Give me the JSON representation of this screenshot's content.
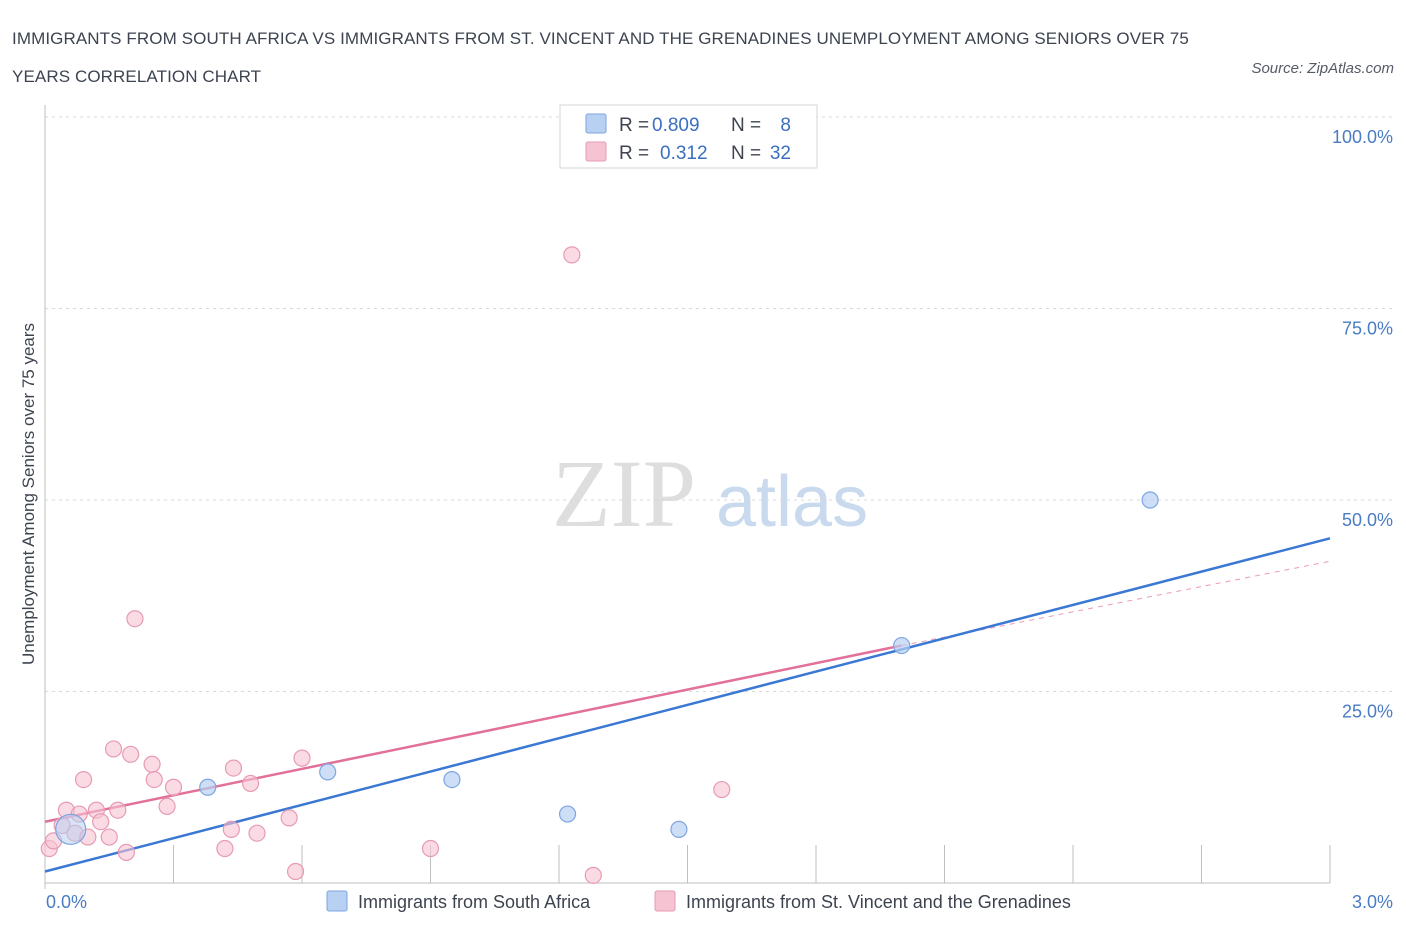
{
  "header": {
    "title": "IMMIGRANTS FROM SOUTH AFRICA VS IMMIGRANTS FROM ST. VINCENT AND THE GRENADINES UNEMPLOYMENT AMONG SENIORS OVER 75 YEARS CORRELATION CHART",
    "source": "Source: ZipAtlas.com"
  },
  "watermark": {
    "zip": "ZIP",
    "atlas": "atlas"
  },
  "colors": {
    "blue": "#3a78d4",
    "blue_fill": "#b8d0f2",
    "pink": "#e2709a",
    "pink_fill": "#f6c3d2",
    "axis_text": "#4a7cc4",
    "grid": "#d8d8d8"
  },
  "legend": {
    "r_label": "R =",
    "n_label": "N =",
    "entries": [
      {
        "r": "0.809",
        "n": "8"
      },
      {
        "r": "0.312",
        "n": "32"
      }
    ]
  },
  "chart_data": {
    "type": "scatter",
    "title": "IMMIGRANTS FROM SOUTH AFRICA VS IMMIGRANTS FROM ST. VINCENT AND THE GRENADINES UNEMPLOYMENT AMONG SENIORS OVER 75 YEARS CORRELATION CHART",
    "xlabel": "",
    "ylabel": "Unemployment Among Seniors over 75 years",
    "xlim": [
      0,
      3
    ],
    "ylim": [
      0,
      100
    ],
    "x_tick_labels": [
      "0.0%",
      "3.0%"
    ],
    "y_ticks": [
      25,
      50,
      75,
      100
    ],
    "y_tick_labels": [
      "25.0%",
      "50.0%",
      "75.0%",
      "100.0%"
    ],
    "grid": true,
    "legend_position": "top-center",
    "series": [
      {
        "name": "Immigrants from South Africa",
        "color": "#3a78d4",
        "r": 0.809,
        "n": 8,
        "points": [
          {
            "x": 0.06,
            "y": 7.0,
            "big": true
          },
          {
            "x": 0.38,
            "y": 12.5
          },
          {
            "x": 0.66,
            "y": 14.5
          },
          {
            "x": 0.95,
            "y": 13.5
          },
          {
            "x": 1.22,
            "y": 9.0
          },
          {
            "x": 1.48,
            "y": 7.0
          },
          {
            "x": 2.0,
            "y": 31.0
          },
          {
            "x": 2.58,
            "y": 50.0
          }
        ],
        "trend": {
          "x": [
            0.0,
            3.0
          ],
          "y": [
            1.5,
            45.0
          ]
        }
      },
      {
        "name": "Immigrants from St. Vincent and the Grenadines",
        "color": "#e2709a",
        "r": 0.312,
        "n": 32,
        "points": [
          {
            "x": 0.01,
            "y": 4.5
          },
          {
            "x": 0.02,
            "y": 5.5
          },
          {
            "x": 0.04,
            "y": 7.5
          },
          {
            "x": 0.05,
            "y": 9.5
          },
          {
            "x": 0.07,
            "y": 6.5
          },
          {
            "x": 0.08,
            "y": 9.0
          },
          {
            "x": 0.09,
            "y": 13.5
          },
          {
            "x": 0.1,
            "y": 6.0
          },
          {
            "x": 0.12,
            "y": 9.5
          },
          {
            "x": 0.13,
            "y": 8.0
          },
          {
            "x": 0.15,
            "y": 6.0
          },
          {
            "x": 0.16,
            "y": 17.5
          },
          {
            "x": 0.17,
            "y": 9.5
          },
          {
            "x": 0.19,
            "y": 4.0
          },
          {
            "x": 0.2,
            "y": 16.8
          },
          {
            "x": 0.21,
            "y": 34.5
          },
          {
            "x": 0.25,
            "y": 15.5
          },
          {
            "x": 0.255,
            "y": 13.5
          },
          {
            "x": 0.285,
            "y": 10.0
          },
          {
            "x": 0.3,
            "y": 12.5
          },
          {
            "x": 0.42,
            "y": 4.5
          },
          {
            "x": 0.435,
            "y": 7.0
          },
          {
            "x": 0.44,
            "y": 15.0
          },
          {
            "x": 0.48,
            "y": 13.0
          },
          {
            "x": 0.495,
            "y": 6.5
          },
          {
            "x": 0.57,
            "y": 8.5
          },
          {
            "x": 0.585,
            "y": 1.5
          },
          {
            "x": 0.6,
            "y": 16.3
          },
          {
            "x": 0.9,
            "y": 4.5
          },
          {
            "x": 1.23,
            "y": 82.0
          },
          {
            "x": 1.28,
            "y": 1.0
          },
          {
            "x": 1.58,
            "y": 12.2
          }
        ],
        "trend": {
          "x": [
            0.0,
            2.0
          ],
          "y": [
            8.0,
            31.0
          ]
        },
        "trend_extension": {
          "x": [
            2.0,
            3.0
          ],
          "y": [
            31.0,
            42.0
          ]
        }
      }
    ]
  }
}
